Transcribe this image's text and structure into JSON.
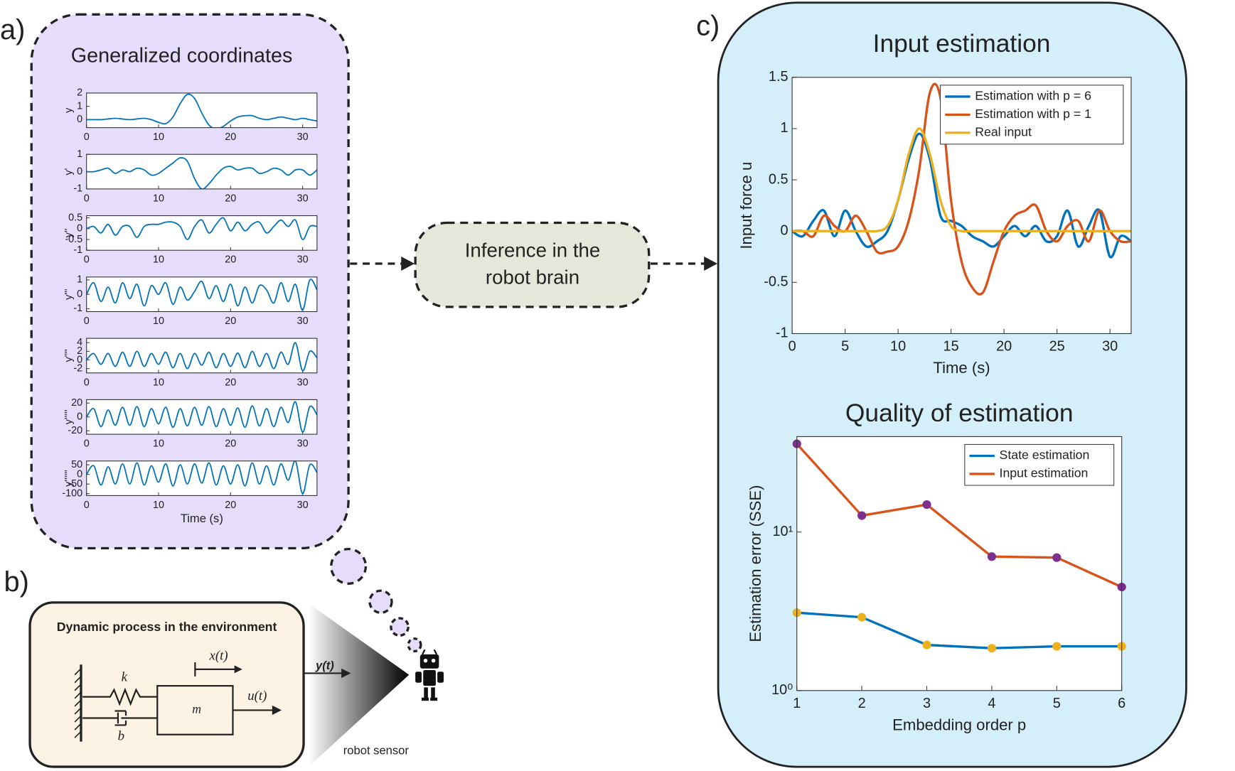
{
  "diagram": {
    "panel_a_label": "a)",
    "panel_b_label": "b)",
    "panel_c_label": "c)",
    "panel_a_title": "Generalized coordinates",
    "inference_lines": [
      "Inference in the",
      "robot brain"
    ],
    "process_title": "Dynamic process in the environment",
    "spring_label": "k",
    "damper_label": "b",
    "mass_label": "m",
    "position_label": "x(t)",
    "force_label": "u(t)",
    "output_label": "y(t)",
    "sensor_label": "robot sensor"
  },
  "chart_data": [
    {
      "type": "line",
      "ylabel": "y",
      "x": [
        0,
        1,
        2,
        3,
        4,
        5,
        6,
        7,
        8,
        9,
        10,
        11,
        12,
        13,
        14,
        15,
        16,
        17,
        18,
        19,
        20,
        21,
        22,
        23,
        24,
        25,
        26,
        27,
        28,
        29,
        30,
        31,
        32
      ],
      "xlim": [
        0,
        32
      ],
      "xticks": [
        0,
        10,
        20,
        30
      ],
      "ylim": [
        -0.6,
        2
      ],
      "yticks": [
        0,
        1,
        2
      ],
      "series": [
        {
          "color": "#0072bd",
          "values": [
            0,
            0,
            0,
            0.05,
            0.1,
            0.05,
            0,
            0.05,
            0.1,
            0,
            -0.2,
            -0.3,
            0.2,
            1.2,
            1.9,
            1.6,
            0.5,
            -0.4,
            -0.7,
            -0.5,
            -0.1,
            0.2,
            0.3,
            0.3,
            0.1,
            0,
            0.1,
            0.2,
            0.1,
            0,
            0.1,
            0,
            -0.1
          ]
        }
      ]
    },
    {
      "type": "line",
      "ylabel": "y'",
      "x": [
        0,
        1,
        2,
        3,
        4,
        5,
        6,
        7,
        8,
        9,
        10,
        11,
        12,
        13,
        14,
        15,
        16,
        17,
        18,
        19,
        20,
        21,
        22,
        23,
        24,
        25,
        26,
        27,
        28,
        29,
        30,
        31,
        32
      ],
      "xlim": [
        0,
        32
      ],
      "xticks": [
        0,
        10,
        20,
        30
      ],
      "ylim": [
        -1,
        1
      ],
      "yticks": [
        -1,
        0,
        1
      ],
      "series": [
        {
          "color": "#0072bd",
          "values": [
            0,
            0,
            0.1,
            0.2,
            -0.1,
            0.1,
            0,
            0.2,
            0.1,
            -0.2,
            -0.1,
            0.2,
            0.5,
            0.8,
            0.6,
            -0.4,
            -1,
            -0.7,
            -0.2,
            0.2,
            0.3,
            0.1,
            0.2,
            0.2,
            -0.1,
            0,
            0.2,
            0.1,
            -0.2,
            0.1,
            0.1,
            -0.2,
            0.1
          ]
        }
      ]
    },
    {
      "type": "line",
      "ylabel": "y''",
      "x": [
        0,
        1,
        2,
        3,
        4,
        5,
        6,
        7,
        8,
        9,
        10,
        11,
        12,
        13,
        14,
        15,
        16,
        17,
        18,
        19,
        20,
        21,
        22,
        23,
        24,
        25,
        26,
        27,
        28,
        29,
        30,
        31,
        32
      ],
      "xlim": [
        0,
        32
      ],
      "xticks": [
        0,
        10,
        20,
        30
      ],
      "ylim": [
        -1,
        0.6
      ],
      "yticks": [
        -1,
        -0.5,
        0,
        0.5
      ],
      "series": [
        {
          "color": "#0072bd",
          "values": [
            0,
            0.1,
            -0.2,
            0.2,
            -0.3,
            0.1,
            0.1,
            -0.4,
            0.1,
            0.2,
            0.2,
            0.3,
            0.3,
            0.1,
            -0.5,
            0.1,
            0.4,
            -0.2,
            0.2,
            0.5,
            -0.1,
            0.3,
            -0.1,
            0.2,
            0.3,
            -0.2,
            0.1,
            0.4,
            0.1,
            0.4,
            -0.5,
            0.1,
            0.1
          ]
        }
      ]
    },
    {
      "type": "line",
      "ylabel": "y'''",
      "x": [
        0,
        1,
        2,
        3,
        4,
        5,
        6,
        7,
        8,
        9,
        10,
        11,
        12,
        13,
        14,
        15,
        16,
        17,
        18,
        19,
        20,
        21,
        22,
        23,
        24,
        25,
        26,
        27,
        28,
        29,
        30,
        31,
        32
      ],
      "xlim": [
        0,
        32
      ],
      "xticks": [
        0,
        10,
        20,
        30
      ],
      "ylim": [
        -1.2,
        1.2
      ],
      "yticks": [
        -1,
        0,
        1
      ],
      "series": [
        {
          "color": "#0072bd",
          "values": [
            0,
            0.8,
            -0.5,
            0.5,
            -0.6,
            0.8,
            -0.3,
            0.7,
            -0.8,
            0.6,
            0,
            0.8,
            -0.7,
            0.5,
            -0.4,
            0.2,
            0.9,
            -0.3,
            0.6,
            -0.5,
            0.7,
            -0.8,
            0.5,
            -0.6,
            0.6,
            0.3,
            -0.6,
            0.8,
            -0.5,
            0.7,
            -1.1,
            1,
            0.3
          ]
        }
      ]
    },
    {
      "type": "line",
      "ylabel": "y''''",
      "x": [
        0,
        1,
        2,
        3,
        4,
        5,
        6,
        7,
        8,
        9,
        10,
        11,
        12,
        13,
        14,
        15,
        16,
        17,
        18,
        19,
        20,
        21,
        22,
        23,
        24,
        25,
        26,
        27,
        28,
        29,
        30,
        31,
        32
      ],
      "xlim": [
        0,
        32
      ],
      "xticks": [
        0,
        10,
        20,
        30
      ],
      "ylim": [
        -3,
        5
      ],
      "yticks": [
        -2,
        0,
        2,
        4
      ],
      "series": [
        {
          "color": "#0072bd",
          "values": [
            0,
            1.5,
            -1,
            1.5,
            -1.5,
            1.8,
            -1.5,
            2,
            -1.5,
            1.5,
            -1,
            1.8,
            -1.8,
            1.5,
            -2,
            1.5,
            -1.2,
            1.8,
            -1.8,
            1.5,
            -1.5,
            1.6,
            -1.8,
            2,
            -1.5,
            1.5,
            -2,
            1.8,
            -1,
            4,
            -2.5,
            2,
            0.5
          ]
        }
      ]
    },
    {
      "type": "line",
      "ylabel": "y'''''",
      "x": [
        0,
        1,
        2,
        3,
        4,
        5,
        6,
        7,
        8,
        9,
        10,
        11,
        12,
        13,
        14,
        15,
        16,
        17,
        18,
        19,
        20,
        21,
        22,
        23,
        24,
        25,
        26,
        27,
        28,
        29,
        30,
        31,
        32
      ],
      "xlim": [
        0,
        32
      ],
      "xticks": [
        0,
        10,
        20,
        30
      ],
      "ylim": [
        -25,
        25
      ],
      "yticks": [
        -20,
        0,
        20
      ],
      "series": [
        {
          "color": "#0072bd",
          "values": [
            0,
            12,
            -14,
            10,
            -12,
            14,
            -12,
            15,
            -14,
            12,
            -10,
            14,
            -15,
            12,
            -13,
            14,
            -12,
            15,
            -14,
            12,
            -12,
            13,
            -15,
            16,
            -13,
            12,
            -14,
            14,
            -8,
            22,
            -22,
            15,
            3
          ]
        }
      ]
    },
    {
      "type": "line",
      "ylabel": "y''''''",
      "xlabel": "Time (s)",
      "x": [
        0,
        1,
        2,
        3,
        4,
        5,
        6,
        7,
        8,
        9,
        10,
        11,
        12,
        13,
        14,
        15,
        16,
        17,
        18,
        19,
        20,
        21,
        22,
        23,
        24,
        25,
        26,
        27,
        28,
        29,
        30,
        31,
        32
      ],
      "xlim": [
        0,
        32
      ],
      "xticks": [
        0,
        10,
        20,
        30
      ],
      "ylim": [
        -110,
        70
      ],
      "yticks": [
        -100,
        -50,
        0,
        50
      ],
      "series": [
        {
          "color": "#0072bd",
          "values": [
            0,
            45,
            -55,
            40,
            -50,
            55,
            -50,
            60,
            -55,
            45,
            -40,
            55,
            -60,
            50,
            -50,
            55,
            -45,
            60,
            -55,
            45,
            -50,
            50,
            -60,
            60,
            -50,
            45,
            -55,
            55,
            -30,
            70,
            -100,
            50,
            10
          ]
        }
      ]
    },
    {
      "type": "line",
      "title": "Input estimation",
      "xlabel": "Time (s)",
      "ylabel": "Input force u",
      "legend": "northeast",
      "x": [
        0,
        1,
        2,
        3,
        4,
        5,
        6,
        7,
        8,
        9,
        10,
        11,
        12,
        13,
        14,
        15,
        16,
        17,
        18,
        19,
        20,
        21,
        22,
        23,
        24,
        25,
        26,
        27,
        28,
        29,
        30,
        31,
        32
      ],
      "xlim": [
        0,
        32
      ],
      "xticks": [
        0,
        5,
        10,
        15,
        20,
        25,
        30
      ],
      "ylim": [
        -1,
        1.5
      ],
      "yticks": [
        -1,
        -0.5,
        0,
        0.5,
        1,
        1.5
      ],
      "series": [
        {
          "name": "Estimation with p = 6",
          "color": "#0072bd",
          "values": [
            0,
            -0.05,
            0.1,
            0.2,
            -0.05,
            0.2,
            0,
            -0.15,
            -0.1,
            0,
            0.3,
            0.7,
            0.95,
            0.7,
            0.15,
            0.1,
            0.05,
            -0.05,
            -0.1,
            -0.15,
            -0.05,
            0.05,
            -0.05,
            0.05,
            -0.1,
            -0.05,
            0.2,
            -0.15,
            0.05,
            0.2,
            -0.25,
            -0.05,
            -0.1
          ]
        },
        {
          "name": "Estimation with p = 1",
          "color": "#d95319",
          "values": [
            0,
            0,
            -0.05,
            0.15,
            0.05,
            0,
            0.15,
            0,
            -0.2,
            -0.2,
            -0.15,
            0.1,
            0.6,
            1.35,
            1.3,
            0.3,
            -0.3,
            -0.55,
            -0.6,
            -0.3,
            0,
            0.15,
            0.2,
            0.25,
            0,
            -0.1,
            0.05,
            0.1,
            -0.1,
            0.2,
            0,
            -0.1,
            -0.1
          ]
        },
        {
          "name": "Real input",
          "color": "#edb120",
          "values": [
            0,
            0,
            0,
            0,
            0,
            0,
            0,
            0,
            0,
            0.05,
            0.3,
            0.75,
            1,
            0.75,
            0.3,
            0.05,
            0,
            0,
            0,
            0,
            0,
            0,
            0,
            0,
            0,
            0,
            0,
            0,
            0,
            0,
            0,
            0,
            0
          ]
        }
      ]
    },
    {
      "type": "line",
      "title": "Quality of estimation",
      "xlabel": "Embedding order p",
      "ylabel": "Estimation error (SSE)",
      "legend": "northeast",
      "log_y": true,
      "smooth": false,
      "x": [
        1,
        2,
        3,
        4,
        5,
        6
      ],
      "xlim": [
        1,
        6
      ],
      "xticks": [
        1,
        2,
        3,
        4,
        5,
        6
      ],
      "ylim": [
        1,
        40
      ],
      "yticks": [
        {
          "value": 1,
          "label": "10⁰"
        },
        {
          "value": 10,
          "label": "10¹"
        }
      ],
      "series": [
        {
          "name": "State estimation",
          "color": "#0072bd",
          "marker_color": "#edb120",
          "values": [
            3.1,
            2.9,
            1.94,
            1.85,
            1.9,
            1.9
          ]
        },
        {
          "name": "Input estimation",
          "color": "#d95319",
          "marker_color": "#7e2f8e",
          "values": [
            36,
            12.7,
            14.9,
            7.0,
            6.9,
            4.5
          ]
        }
      ]
    }
  ]
}
